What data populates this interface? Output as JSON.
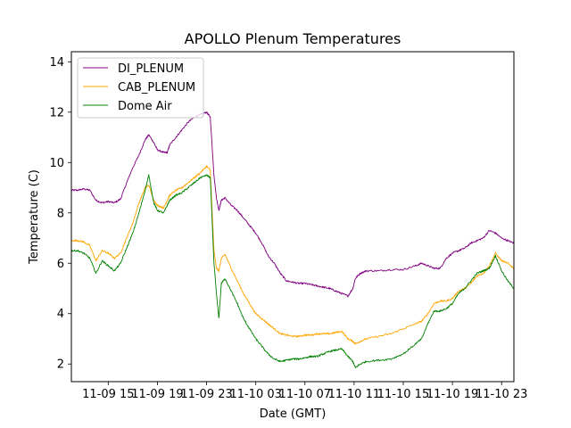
{
  "chart_data": {
    "type": "line",
    "title": "APOLLO Plenum Temperatures",
    "xlabel": "Date (GMT)",
    "ylabel": "Temperature (C)",
    "xlim": [
      0.0,
      36.0
    ],
    "ylim": [
      1.3,
      14.4
    ],
    "x_ticks": [
      {
        "value": 3.0,
        "label": "11-09 15"
      },
      {
        "value": 7.0,
        "label": "11-09 19"
      },
      {
        "value": 11.0,
        "label": "11-09 23"
      },
      {
        "value": 15.0,
        "label": "11-10 03"
      },
      {
        "value": 19.0,
        "label": "11-10 07"
      },
      {
        "value": 23.0,
        "label": "11-10 11"
      },
      {
        "value": 27.0,
        "label": "11-10 15"
      },
      {
        "value": 31.0,
        "label": "11-10 19"
      },
      {
        "value": 35.0,
        "label": "11-10 23"
      }
    ],
    "y_ticks": [
      {
        "value": 2,
        "label": "2"
      },
      {
        "value": 4,
        "label": "4"
      },
      {
        "value": 6,
        "label": "6"
      },
      {
        "value": 8,
        "label": "8"
      },
      {
        "value": 10,
        "label": "10"
      },
      {
        "value": 12,
        "label": "12"
      },
      {
        "value": 14,
        "label": "14"
      }
    ],
    "legend_position": "top-left",
    "series": [
      {
        "name": "DI_PLENUM",
        "color": "#800080",
        "x": [
          0.0,
          0.5,
          1.0,
          1.5,
          2.0,
          2.5,
          3.0,
          3.5,
          4.0,
          4.5,
          5.0,
          5.5,
          6.0,
          6.3,
          6.7,
          7.0,
          7.5,
          7.8,
          8.0,
          8.5,
          9.0,
          9.5,
          10.0,
          10.5,
          11.0,
          11.3,
          11.6,
          11.8,
          12.0,
          12.2,
          12.5,
          13.0,
          13.5,
          14.0,
          14.5,
          15.0,
          15.5,
          16.0,
          16.5,
          17.0,
          17.5,
          18.0,
          18.5,
          19.0,
          19.5,
          20.0,
          20.5,
          21.0,
          21.5,
          22.0,
          22.5,
          22.9,
          23.1,
          23.5,
          24.0,
          25.0,
          26.0,
          27.0,
          28.0,
          28.5,
          29.0,
          29.5,
          30.0,
          30.5,
          31.0,
          31.5,
          32.0,
          32.5,
          33.0,
          33.5,
          34.0,
          34.5,
          35.0,
          35.5,
          36.0
        ],
        "values": [
          8.9,
          8.9,
          8.95,
          8.9,
          8.5,
          8.4,
          8.45,
          8.4,
          8.55,
          9.2,
          9.8,
          10.3,
          10.9,
          11.1,
          10.8,
          10.5,
          10.4,
          10.4,
          10.7,
          11.0,
          11.3,
          11.6,
          11.8,
          11.9,
          12.0,
          11.8,
          9.5,
          8.6,
          8.1,
          8.5,
          8.6,
          8.3,
          8.1,
          7.8,
          7.5,
          7.2,
          6.8,
          6.3,
          6.0,
          5.6,
          5.3,
          5.25,
          5.2,
          5.2,
          5.15,
          5.1,
          5.05,
          5.0,
          4.9,
          4.8,
          4.7,
          5.0,
          5.4,
          5.6,
          5.7,
          5.7,
          5.75,
          5.75,
          5.9,
          6.0,
          5.9,
          5.8,
          5.8,
          6.2,
          6.4,
          6.5,
          6.6,
          6.8,
          6.9,
          7.0,
          7.3,
          7.2,
          7.0,
          6.9,
          6.8
        ]
      },
      {
        "name": "CAB_PLENUM",
        "color": "#ffa500",
        "x": [
          0.0,
          0.5,
          1.0,
          1.5,
          2.0,
          2.5,
          3.0,
          3.5,
          4.0,
          4.5,
          5.0,
          5.5,
          6.0,
          6.3,
          6.7,
          7.0,
          7.5,
          7.8,
          8.0,
          8.5,
          9.0,
          9.5,
          10.0,
          10.5,
          11.0,
          11.3,
          11.6,
          11.8,
          12.0,
          12.2,
          12.5,
          13.0,
          13.5,
          14.0,
          14.5,
          15.0,
          15.5,
          16.0,
          16.5,
          17.0,
          17.5,
          18.0,
          18.5,
          19.0,
          19.5,
          20.0,
          20.5,
          21.0,
          21.5,
          22.0,
          22.5,
          22.9,
          23.1,
          23.5,
          24.0,
          25.0,
          26.0,
          27.0,
          28.0,
          28.5,
          29.0,
          29.5,
          30.0,
          30.5,
          31.0,
          31.5,
          32.0,
          32.5,
          33.0,
          33.5,
          34.0,
          34.5,
          35.0,
          35.5,
          36.0
        ],
        "values": [
          6.9,
          6.9,
          6.85,
          6.7,
          6.1,
          6.5,
          6.4,
          6.2,
          6.4,
          7.0,
          7.6,
          8.4,
          9.0,
          9.1,
          8.5,
          8.3,
          8.2,
          8.5,
          8.7,
          8.9,
          9.0,
          9.2,
          9.4,
          9.6,
          9.85,
          9.7,
          6.5,
          5.8,
          5.7,
          6.2,
          6.35,
          5.8,
          5.3,
          4.8,
          4.4,
          4.0,
          3.8,
          3.6,
          3.4,
          3.2,
          3.15,
          3.1,
          3.1,
          3.15,
          3.15,
          3.2,
          3.2,
          3.2,
          3.25,
          3.3,
          3.0,
          2.9,
          2.8,
          2.9,
          3.0,
          3.1,
          3.2,
          3.4,
          3.6,
          3.7,
          4.0,
          4.4,
          4.5,
          4.5,
          4.6,
          4.9,
          5.0,
          5.2,
          5.5,
          5.6,
          5.9,
          6.4,
          6.1,
          6.0,
          5.8
        ]
      },
      {
        "name": "Dome Air",
        "color": "#008000",
        "x": [
          0.0,
          0.5,
          1.0,
          1.5,
          2.0,
          2.5,
          3.0,
          3.5,
          4.0,
          4.5,
          5.0,
          5.5,
          6.0,
          6.3,
          6.7,
          7.0,
          7.5,
          7.8,
          8.0,
          8.5,
          9.0,
          9.5,
          10.0,
          10.5,
          11.0,
          11.3,
          11.6,
          11.8,
          12.0,
          12.2,
          12.5,
          13.0,
          13.5,
          14.0,
          14.5,
          15.0,
          15.5,
          16.0,
          16.5,
          17.0,
          17.5,
          18.0,
          18.5,
          19.0,
          19.5,
          20.0,
          20.5,
          21.0,
          21.5,
          22.0,
          22.5,
          22.9,
          23.1,
          23.5,
          24.0,
          25.0,
          26.0,
          27.0,
          28.0,
          28.5,
          29.0,
          29.5,
          30.0,
          30.5,
          31.0,
          31.5,
          32.0,
          32.5,
          33.0,
          33.5,
          34.0,
          34.5,
          35.0,
          35.5,
          36.0
        ],
        "values": [
          6.5,
          6.5,
          6.4,
          6.2,
          5.6,
          6.1,
          5.9,
          5.7,
          6.0,
          6.6,
          7.2,
          8.0,
          8.9,
          9.5,
          8.4,
          8.1,
          8.0,
          8.3,
          8.5,
          8.7,
          8.8,
          9.0,
          9.2,
          9.4,
          9.5,
          9.4,
          6.0,
          4.8,
          3.8,
          5.2,
          5.4,
          4.9,
          4.4,
          3.8,
          3.4,
          3.0,
          2.7,
          2.4,
          2.2,
          2.1,
          2.15,
          2.2,
          2.2,
          2.25,
          2.3,
          2.3,
          2.4,
          2.5,
          2.55,
          2.6,
          2.3,
          2.1,
          1.85,
          2.0,
          2.1,
          2.15,
          2.2,
          2.4,
          2.8,
          3.0,
          3.6,
          4.1,
          4.1,
          4.2,
          4.4,
          4.8,
          5.0,
          5.3,
          5.6,
          5.7,
          5.8,
          6.3,
          5.7,
          5.3,
          5.0
        ]
      }
    ]
  }
}
